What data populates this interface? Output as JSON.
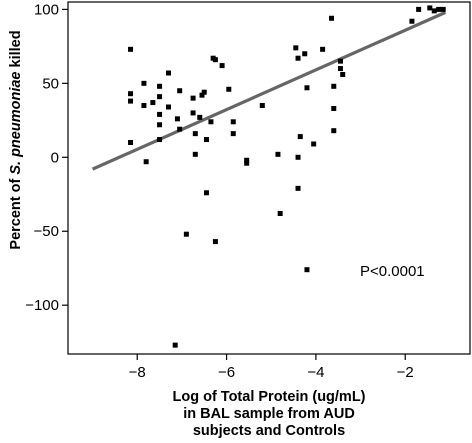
{
  "chart_data": {
    "type": "scatter",
    "title": "",
    "xlabel_lines": [
      "Log of Total Protein (ug/mL)",
      "in BAL sample from AUD",
      "subjects and Controls"
    ],
    "ylabel_parts": {
      "before": "Percent of ",
      "italic": "S. pneumoniae",
      "after": " killed"
    },
    "xlim": [
      -9.55,
      -0.55
    ],
    "ylim": [
      -133,
      105
    ],
    "x_ticks": [
      -8,
      -6,
      -4,
      -2
    ],
    "x_tick_labels": [
      "−8",
      "−6",
      "−4",
      "−2"
    ],
    "y_ticks": [
      100,
      50,
      0,
      -50,
      -100
    ],
    "y_tick_labels": [
      "100",
      "50",
      "0",
      "−50",
      "−100"
    ],
    "grid": false,
    "annotation": "P<0.0001",
    "regression_line": {
      "x": [
        -9.0,
        -1.1
      ],
      "y": [
        -8,
        98
      ]
    },
    "points": [
      [
        -8.15,
        73
      ],
      [
        -8.15,
        43
      ],
      [
        -8.15,
        38
      ],
      [
        -8.15,
        10
      ],
      [
        -7.85,
        50
      ],
      [
        -7.85,
        35
      ],
      [
        -7.8,
        -3
      ],
      [
        -7.65,
        37
      ],
      [
        -7.5,
        48
      ],
      [
        -7.5,
        41
      ],
      [
        -7.5,
        29
      ],
      [
        -7.5,
        22
      ],
      [
        -7.5,
        12
      ],
      [
        -7.3,
        57
      ],
      [
        -7.3,
        34
      ],
      [
        -7.1,
        26
      ],
      [
        -7.05,
        45
      ],
      [
        -7.05,
        19
      ],
      [
        -6.9,
        -52
      ],
      [
        -7.15,
        -127
      ],
      [
        -6.75,
        40
      ],
      [
        -6.75,
        30
      ],
      [
        -6.7,
        16
      ],
      [
        -6.7,
        2
      ],
      [
        -6.6,
        27
      ],
      [
        -6.55,
        42
      ],
      [
        -6.5,
        44
      ],
      [
        -6.45,
        12
      ],
      [
        -6.45,
        -24
      ],
      [
        -6.35,
        24
      ],
      [
        -6.3,
        67
      ],
      [
        -6.25,
        66
      ],
      [
        -6.25,
        -57
      ],
      [
        -6.1,
        62
      ],
      [
        -5.95,
        46
      ],
      [
        -5.85,
        24
      ],
      [
        -5.85,
        16
      ],
      [
        -5.55,
        -2
      ],
      [
        -5.55,
        -4
      ],
      [
        -5.2,
        35
      ],
      [
        -4.85,
        2
      ],
      [
        -4.8,
        -38
      ],
      [
        -4.45,
        74
      ],
      [
        -4.4,
        67
      ],
      [
        -4.35,
        14
      ],
      [
        -4.4,
        0
      ],
      [
        -4.4,
        -21
      ],
      [
        -4.25,
        70
      ],
      [
        -4.2,
        47
      ],
      [
        -4.2,
        -76
      ],
      [
        -4.05,
        9
      ],
      [
        -3.85,
        73
      ],
      [
        -3.65,
        94
      ],
      [
        -3.6,
        48
      ],
      [
        -3.6,
        33
      ],
      [
        -3.6,
        18
      ],
      [
        -3.45,
        65
      ],
      [
        -3.45,
        60
      ],
      [
        -3.4,
        56
      ],
      [
        -1.85,
        92
      ],
      [
        -1.7,
        100
      ],
      [
        -1.45,
        101
      ],
      [
        -1.35,
        99
      ],
      [
        -1.25,
        100
      ],
      [
        -1.15,
        100
      ]
    ]
  }
}
